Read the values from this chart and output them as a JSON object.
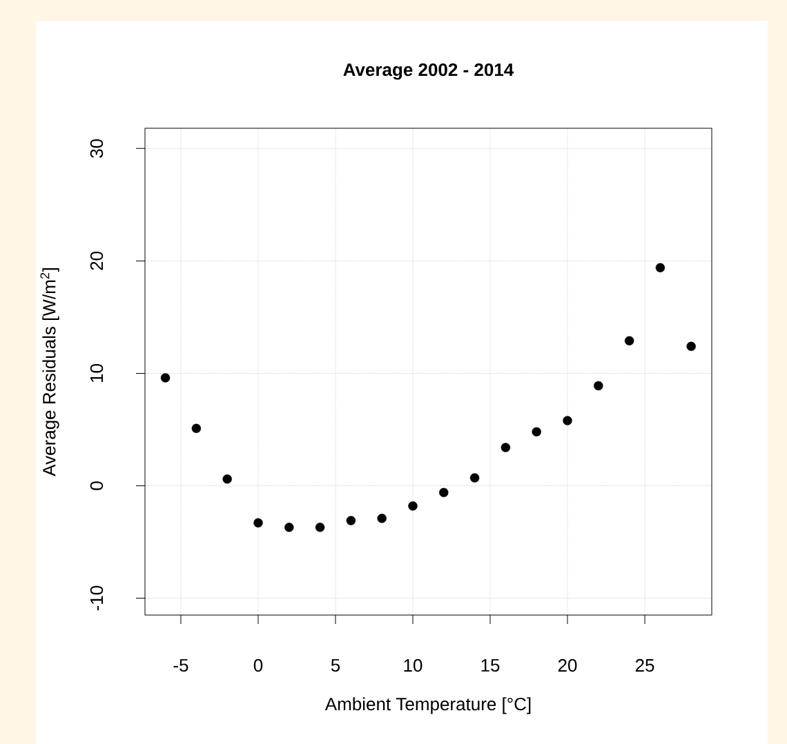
{
  "chart_data": {
    "type": "scatter",
    "title": "Average 2002 - 2014",
    "xlabel": "Ambient Temperature [°C]",
    "ylabel": "Average Residuals [W/m$^{2}$]",
    "x": [
      -6,
      -4,
      -2,
      0,
      2,
      4,
      6,
      8,
      10,
      12,
      14,
      16,
      18,
      20,
      22,
      24,
      26,
      28
    ],
    "values": [
      9.6,
      5.1,
      0.6,
      -3.3,
      -3.7,
      -3.7,
      -3.1,
      -2.9,
      -1.8,
      -0.6,
      0.7,
      3.4,
      4.8,
      5.8,
      8.9,
      12.9,
      19.4,
      12.4
    ],
    "color": "#000000",
    "marker": "circle",
    "grid": true,
    "xlim": [
      -7.32,
      29.33
    ],
    "ylim": [
      -11.5,
      31.8
    ],
    "xticks": [
      -5,
      0,
      5,
      10,
      15,
      20,
      25
    ],
    "yticks": [
      -10,
      0,
      10,
      20,
      30
    ]
  }
}
